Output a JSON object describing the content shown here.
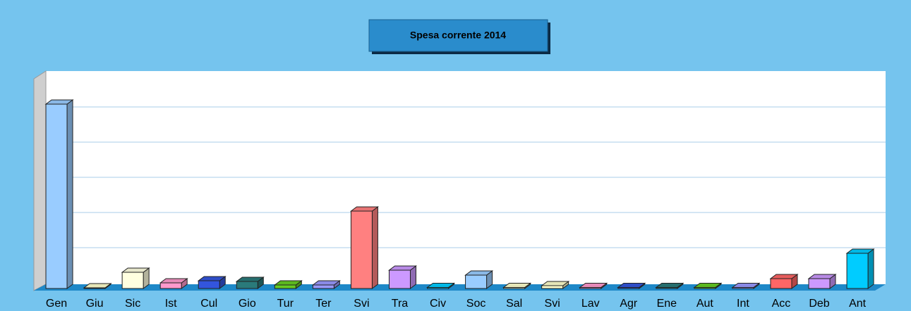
{
  "chart_data": {
    "type": "bar3d",
    "title": "Spesa corrente 2014",
    "categories": [
      "Gen",
      "Giu",
      "Sic",
      "Ist",
      "Cul",
      "Gio",
      "Tur",
      "Ter",
      "Svi",
      "Tra",
      "Civ",
      "Soc",
      "Sal",
      "Svi",
      "Lav",
      "Agr",
      "Ene",
      "Aut",
      "Int",
      "Acc",
      "Deb",
      "Ant"
    ],
    "values": [
      5.24,
      0.02,
      0.46,
      0.16,
      0.22,
      0.2,
      0.1,
      0.1,
      2.2,
      0.52,
      0.03,
      0.38,
      0.03,
      0.08,
      0.03,
      0.03,
      0.03,
      0.03,
      0.03,
      0.28,
      0.28,
      1.0
    ],
    "colors": [
      "#99ccff",
      "#ffffcc",
      "#ffffe0",
      "#ff99cc",
      "#3355dd",
      "#2a7a7a",
      "#66cc22",
      "#9999ff",
      "#ff8080",
      "#cc99ff",
      "#00ccff",
      "#99ccff",
      "#ffffcc",
      "#ffffcc",
      "#ff99cc",
      "#3355dd",
      "#2a7a7a",
      "#66cc22",
      "#9999ff",
      "#ff6666",
      "#cc99ff",
      "#00ccff"
    ],
    "ylim": [
      0,
      6
    ],
    "yticks": [
      1,
      2,
      3,
      4,
      5
    ],
    "grid": true
  }
}
